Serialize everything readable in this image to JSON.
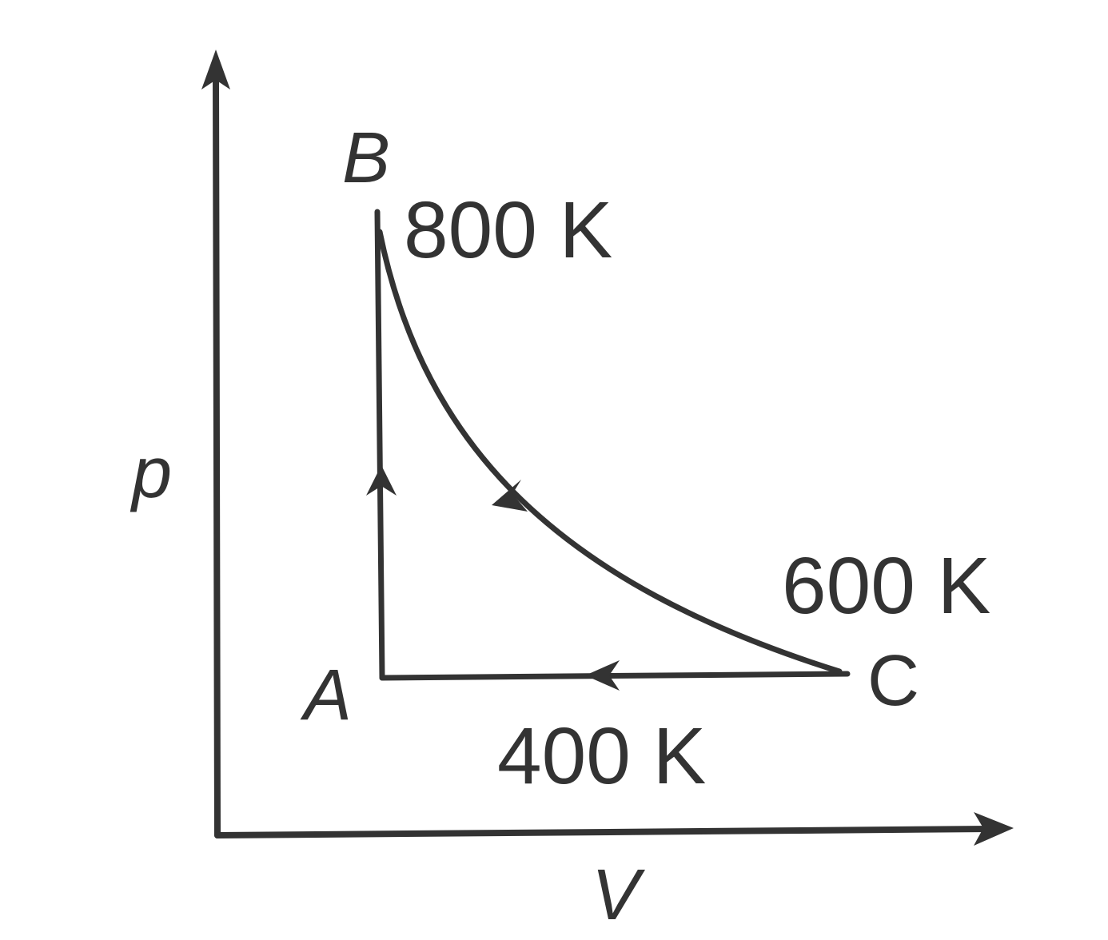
{
  "axes": {
    "y_label": "p",
    "x_label": "V"
  },
  "nodes": [
    {
      "label": "A",
      "temperature": "400 K"
    },
    {
      "label": "B",
      "temperature": "800 K"
    },
    {
      "label": "C",
      "temperature": "600 K"
    }
  ]
}
